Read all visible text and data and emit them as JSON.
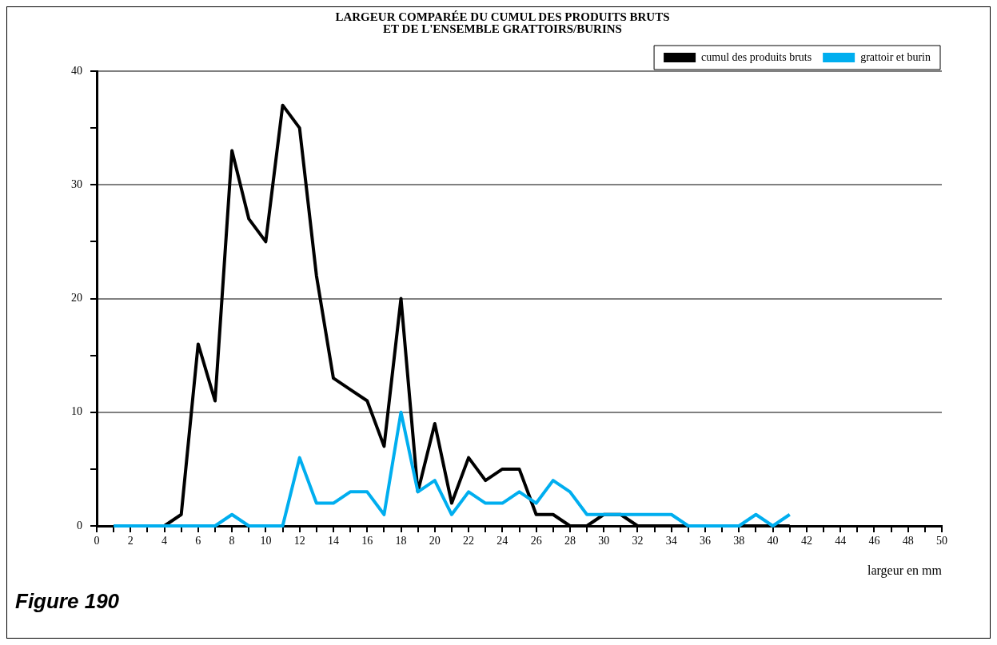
{
  "chart_data": {
    "type": "line",
    "title": "LARGEUR COMPARÉE DU CUMUL DES PRODUITS BRUTS\nET DE L'ENSEMBLE GRATTOIRS/BURINS",
    "xlabel": "largeur en mm",
    "annotations": [
      "Figure 190"
    ],
    "x": [
      1,
      2,
      3,
      4,
      5,
      6,
      7,
      8,
      9,
      10,
      11,
      12,
      13,
      14,
      15,
      16,
      17,
      18,
      19,
      20,
      21,
      22,
      23,
      24,
      25,
      26,
      27,
      28,
      29,
      30,
      31,
      32,
      33,
      34,
      35,
      36,
      37,
      38,
      39,
      40,
      41
    ],
    "series": [
      {
        "name": "cumul des produits bruts",
        "color": "#000000",
        "values": [
          0,
          0,
          0,
          0,
          1,
          16,
          11,
          33,
          27,
          25,
          37,
          35,
          22,
          13,
          12,
          11,
          7,
          20,
          3,
          9,
          2,
          6,
          4,
          5,
          5,
          1,
          1,
          0,
          0,
          1,
          1,
          0,
          0,
          0,
          0,
          0,
          0,
          0,
          0,
          0,
          0
        ]
      },
      {
        "name": "grattoir et burin",
        "color": "#00aeef",
        "values": [
          0,
          0,
          0,
          0,
          0,
          0,
          0,
          1,
          0,
          0,
          0,
          6,
          2,
          2,
          3,
          3,
          1,
          10,
          3,
          4,
          1,
          3,
          2,
          2,
          3,
          2,
          4,
          3,
          1,
          1,
          1,
          1,
          1,
          1,
          0,
          0,
          0,
          0,
          1,
          0,
          1
        ]
      }
    ],
    "xlim": [
      0,
      50
    ],
    "xticks": [
      0,
      {
        "value": 1,
        "label": null
      },
      2,
      {
        "value": 3,
        "label": null
      },
      4,
      {
        "value": 5,
        "label": null
      },
      6,
      {
        "value": 7,
        "label": null
      },
      8,
      {
        "value": 9,
        "label": null
      },
      10,
      {
        "value": 11,
        "label": null
      },
      12,
      {
        "value": 13,
        "label": null
      },
      14,
      {
        "value": 15,
        "label": null
      },
      16,
      {
        "value": 17,
        "label": null
      },
      18,
      {
        "value": 19,
        "label": null
      },
      20,
      {
        "value": 21,
        "label": null
      },
      22,
      {
        "value": 23,
        "label": null
      },
      24,
      {
        "value": 25,
        "label": null
      },
      26,
      {
        "value": 27,
        "label": null
      },
      28,
      {
        "value": 29,
        "label": null
      },
      30,
      {
        "value": 31,
        "label": null
      },
      32,
      {
        "value": 33,
        "label": null
      },
      34,
      {
        "value": 35,
        "label": null
      },
      36,
      {
        "value": 37,
        "label": null
      },
      38,
      {
        "value": 39,
        "label": null
      },
      40,
      {
        "value": 41,
        "label": null
      },
      42,
      {
        "value": 43,
        "label": null
      },
      44,
      {
        "value": 45,
        "label": null
      },
      46,
      {
        "value": 47,
        "label": null
      },
      48,
      {
        "value": 49,
        "label": null
      },
      50
    ],
    "ylim": [
      0,
      40
    ],
    "yticks": [
      0,
      {
        "value": 5,
        "label": null
      },
      10,
      {
        "value": 15,
        "label": null
      },
      20,
      {
        "value": 25,
        "label": null
      },
      30,
      {
        "value": 35,
        "label": null
      },
      40
    ],
    "grid": "y",
    "legend": "top right",
    "marker": "none",
    "line_style": "solid"
  }
}
